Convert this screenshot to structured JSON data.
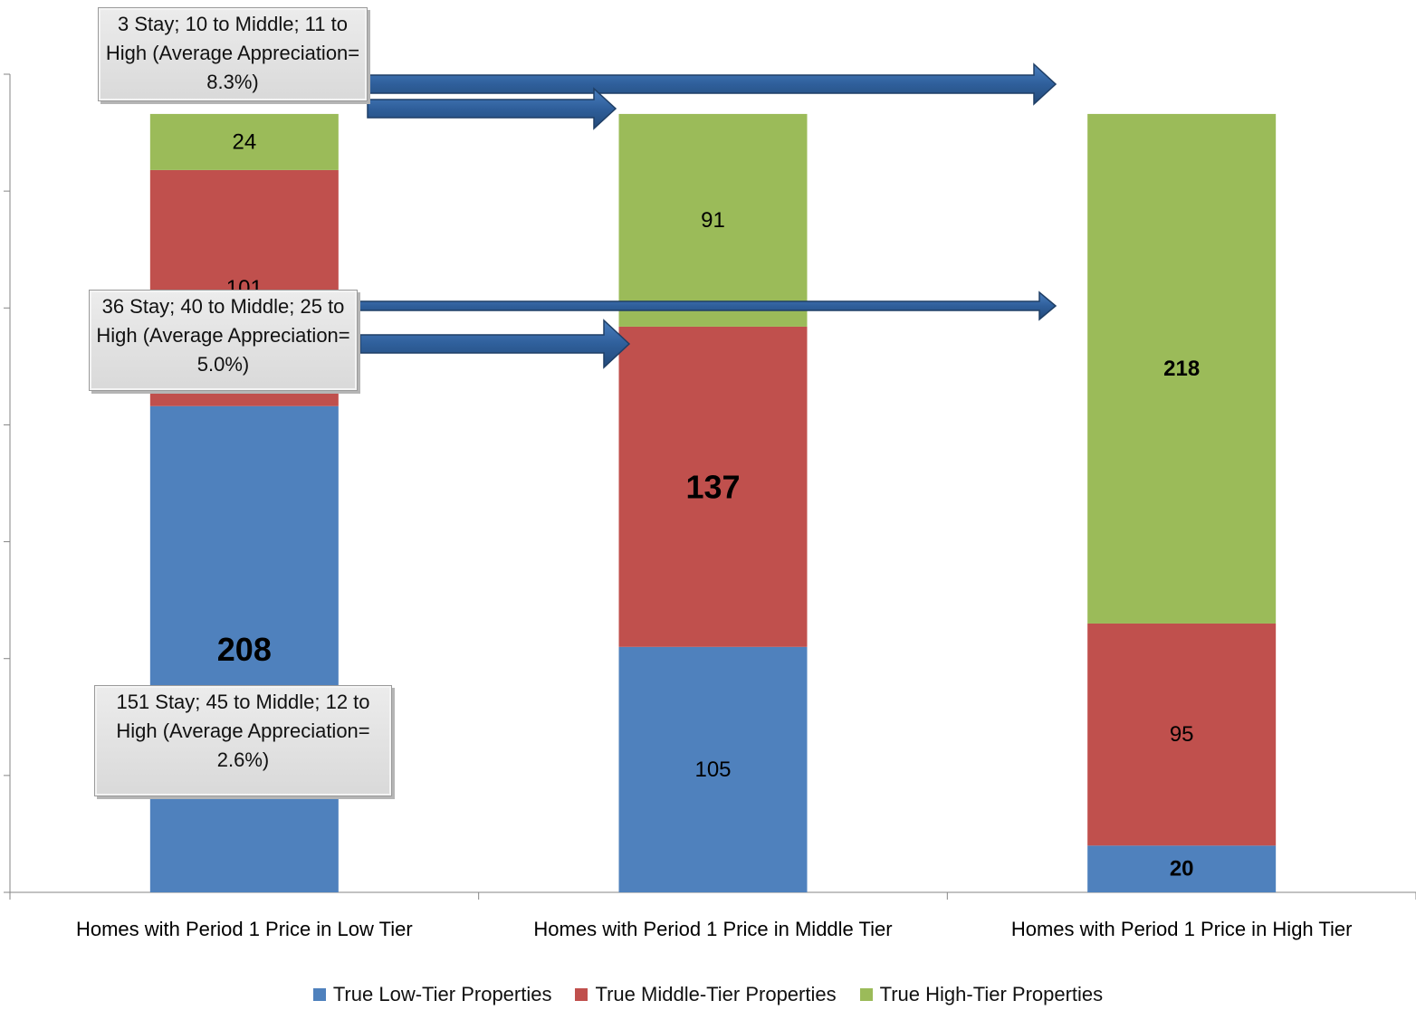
{
  "chart_data": {
    "type": "bar",
    "stacked": true,
    "categories": [
      "Homes with Period 1 Price in Low Tier",
      "Homes with Period 1 Price in Middle Tier",
      "Homes with Period 1 Price in High Tier"
    ],
    "series": [
      {
        "name": "True Low-Tier Properties",
        "color": "#4F81BD",
        "values": [
          208,
          105,
          20
        ]
      },
      {
        "name": "True Middle-Tier Properties",
        "color": "#C0504D",
        "values": [
          101,
          137,
          95
        ]
      },
      {
        "name": "True High-Tier Properties",
        "color": "#9BBB59",
        "values": [
          24,
          91,
          218
        ]
      }
    ],
    "data_labels": {
      "bold": [
        [
          true,
          false,
          true
        ],
        [
          false,
          true,
          false
        ],
        [
          false,
          false,
          true
        ]
      ],
      "large": [
        [
          true,
          false,
          false
        ],
        [
          false,
          true,
          false
        ],
        [
          false,
          false,
          false
        ]
      ]
    },
    "ylim": [
      0,
      350
    ],
    "y_tick_step": 50,
    "y_tick_labels_visible": false,
    "grid": false,
    "legend_position": "bottom",
    "annotations": [
      {
        "text": "3 Stay; 10 to Middle; 11 to High (Average Appreciation= 8.3%)"
      },
      {
        "text": "36 Stay; 40 to Middle; 25 to High (Average Appreciation= 5.0%)"
      },
      {
        "text": "151 Stay; 45 to Middle; 12 to High (Average Appreciation= 2.6%)"
      }
    ],
    "arrow_color": "#2E5A8C"
  }
}
